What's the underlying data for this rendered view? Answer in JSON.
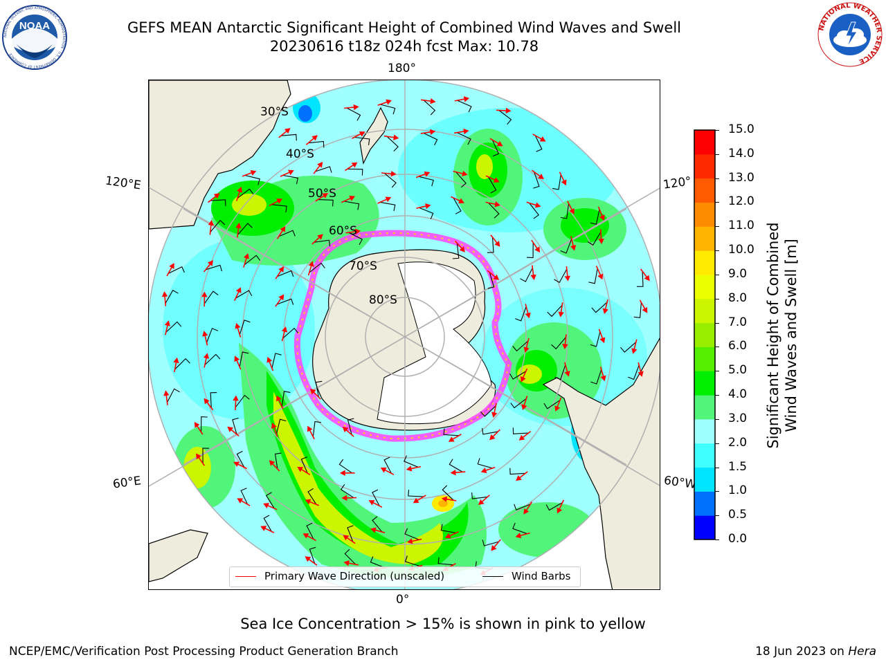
{
  "header": {
    "title_line1": "GEFS MEAN Antarctic Significant Height of Combined Wind Waves and Swell",
    "title_line2": "20230616 t18z 024h fcst   Max: 10.78"
  },
  "logos": {
    "noaa": {
      "emblem_text": "NOAA",
      "ring_text": "NATIONAL OCEANIC AND ATMOSPHERIC ADMINISTRATION · U.S. DEPARTMENT OF COMMERCE"
    },
    "nws": {
      "ring_text": "NATIONAL WEATHER SERVICE"
    }
  },
  "map": {
    "projection": "south polar stereographic",
    "lon_labels": {
      "top": "180°",
      "bottom": "0°",
      "left_upper": "120°E",
      "left_lower": "60°E",
      "right_upper": "120°",
      "right_lower": "60°W"
    },
    "lat_labels": [
      "30°S",
      "40°S",
      "50°S",
      "60°S",
      "70°S",
      "80°S"
    ],
    "colors": {
      "land": "#eeecdc",
      "ice": "#ffffff",
      "ice_edge": "#ff44ff",
      "grid": "#b0b0b0",
      "wave_arrow": "#ff0000",
      "wind_barb": "#000000"
    }
  },
  "legend": {
    "primary_wave": "Primary Wave Direction (unscaled)",
    "wind_barbs": "Wind Barbs"
  },
  "colorbar": {
    "label_line1": "Significant Height of Combined",
    "label_line2": "Wind Waves and Swell [m]",
    "ticks": [
      "15.0",
      "14.0",
      "13.0",
      "12.0",
      "11.0",
      "10.0",
      "9.0",
      "8.0",
      "7.0",
      "6.0",
      "5.0",
      "4.0",
      "3.0",
      "2.0",
      "1.5",
      "1.0",
      "0.5",
      "0.0"
    ],
    "colors": [
      "#0000ff",
      "#0070ff",
      "#00e5ff",
      "#40ffff",
      "#a0ffff",
      "#50f57a",
      "#00ee00",
      "#55ee00",
      "#99ee00",
      "#ccf500",
      "#eeff00",
      "#ffea00",
      "#ffb400",
      "#ff8c00",
      "#ff5a00",
      "#ff2a00",
      "#ff0000"
    ]
  },
  "caption": "Sea Ice Concentration > 15% is shown in pink to yellow",
  "footer": {
    "left": "NCEP/EMC/Verification Post Processing Product Generation Branch",
    "right_date": "18 Jun 2023 on ",
    "right_machine": "Hera"
  }
}
